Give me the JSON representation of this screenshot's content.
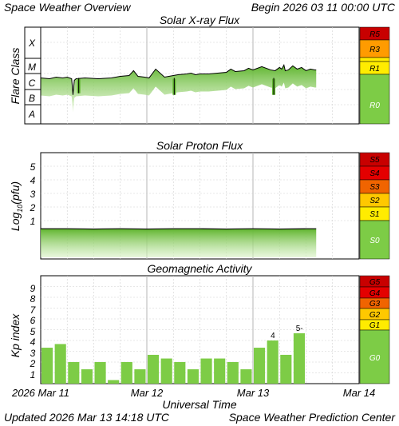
{
  "header": {
    "left": "Space Weather Overview",
    "right": "Begin 2026 03 11 00:00 UTC"
  },
  "footer": {
    "updated": "Updated 2026 Mar 13 14:18 UTC",
    "source": "Space Weather Prediction Center"
  },
  "colors": {
    "bar": "#7dcc46",
    "band_green": "#7dcc46",
    "band_yellow": "#ffec00",
    "band_orange": "#ff9b00",
    "band_deeporange": "#f06400",
    "band_red": "#e40000",
    "band_darkred": "#c80000",
    "grid": "#cfcfcf"
  },
  "x_axis": {
    "title": "Universal Time",
    "ticks": [
      "2026 Mar 11",
      "Mar 12",
      "Mar 13",
      "Mar 14"
    ]
  },
  "chart_data": [
    {
      "type": "line",
      "title": "Solar X-ray Flux",
      "ylabel": "Flare Class",
      "y_ticks": [
        "A",
        "B",
        "C",
        "M",
        "X"
      ],
      "ylim": [
        0,
        6
      ],
      "xlim_hours": [
        0,
        72
      ],
      "data_until_hour": 62.3,
      "x": [
        0,
        2,
        3.5,
        5,
        6,
        7,
        7.3,
        7.6,
        8,
        10,
        13,
        16,
        18,
        20,
        21,
        22,
        23.5,
        24.5,
        26,
        28,
        31,
        33,
        34,
        35,
        36,
        38,
        40,
        42,
        43,
        44,
        46,
        47,
        48,
        50,
        52,
        53,
        54,
        54.5,
        55,
        55.3,
        56,
        57,
        58,
        59,
        60,
        61,
        62,
        62.3
      ],
      "values": [
        2.85,
        2.8,
        2.9,
        2.85,
        2.9,
        2.8,
        1.8,
        2.7,
        2.8,
        2.85,
        2.8,
        2.85,
        2.95,
        3.0,
        3.3,
        2.95,
        2.9,
        2.85,
        3.4,
        2.9,
        3.05,
        3.1,
        3.15,
        3.05,
        3.1,
        3.1,
        3.15,
        3.2,
        3.4,
        3.25,
        3.3,
        3.45,
        3.35,
        3.55,
        3.35,
        3.3,
        3.5,
        3.4,
        3.65,
        3.3,
        3.35,
        3.6,
        3.4,
        3.5,
        3.3,
        3.4,
        3.35,
        3.35
      ],
      "dips": [
        {
          "x_hours": 8.6,
          "value": 1.9
        },
        {
          "x_hours": 30.2,
          "value": 1.8
        },
        {
          "x_hours": 52.7,
          "value": 1.8
        }
      ],
      "scale": [
        "R0",
        "R1",
        "R3",
        "R5"
      ]
    },
    {
      "type": "line",
      "title": "Solar Proton Flux",
      "ylabel": "Log",
      "ylabel_sub": "10",
      "ylabel_rest": "(pfu)",
      "y_ticks": [
        "1",
        "2",
        "3",
        "4",
        "5"
      ],
      "ylim": [
        -1.8,
        5.9
      ],
      "xlim_hours": [
        0,
        72
      ],
      "data_until_hour": 62.3,
      "x": [
        0,
        6,
        12,
        18,
        24,
        30,
        36,
        42,
        48,
        54,
        60,
        62.3
      ],
      "values": [
        -0.6,
        -0.6,
        -0.62,
        -0.6,
        -0.62,
        -0.6,
        -0.6,
        -0.62,
        -0.6,
        -0.62,
        -0.6,
        -0.6
      ],
      "scale": [
        "S0",
        "S1",
        "S2",
        "S3",
        "S4",
        "S5"
      ]
    },
    {
      "type": "bar",
      "title": "Geomagnetic Activity",
      "ylabel": "Kp index",
      "y_ticks": [
        "1",
        "2",
        "3",
        "4",
        "5",
        "6",
        "7",
        "8",
        "9"
      ],
      "ylim": [
        0,
        10
      ],
      "xlim_hours": [
        0,
        72
      ],
      "bar_hours": 3,
      "values": [
        3.33,
        3.67,
        2.0,
        1.33,
        2.0,
        0.33,
        2.0,
        1.33,
        2.67,
        2.33,
        2.0,
        1.33,
        2.33,
        2.33,
        2.0,
        1.33,
        3.33,
        4.0,
        2.67,
        4.67
      ],
      "data_labels": [
        {
          "index": 17,
          "text": "4"
        },
        {
          "index": 19,
          "text": "5-"
        }
      ],
      "scale": [
        "G0",
        "G1",
        "G2",
        "G3",
        "G4",
        "G5"
      ]
    }
  ]
}
